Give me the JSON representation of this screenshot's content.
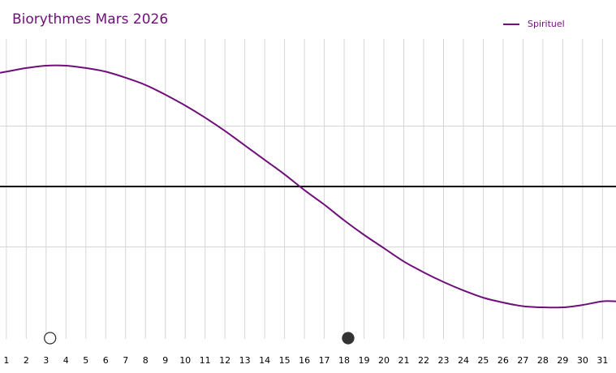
{
  "chart_data": {
    "type": "line",
    "title": "Biorythmes Mars 2026",
    "xlabel": "",
    "ylabel": "",
    "x": [
      1,
      2,
      3,
      4,
      5,
      6,
      7,
      8,
      9,
      10,
      11,
      12,
      13,
      14,
      15,
      16,
      17,
      18,
      19,
      20,
      21,
      22,
      23,
      24,
      25,
      26,
      27,
      28,
      29,
      30,
      31
    ],
    "xlim": [
      0.68,
      31.68
    ],
    "ylim": [
      -1.02,
      1.02
    ],
    "grid": true,
    "legend_position": "top-right",
    "series": [
      {
        "name": "Spirituel",
        "color": "#6e0f7a",
        "values": [
          0.95,
          0.98,
          1.0,
          1.0,
          0.98,
          0.95,
          0.9,
          0.84,
          0.76,
          0.67,
          0.57,
          0.46,
          0.34,
          0.22,
          0.1,
          -0.03,
          -0.15,
          -0.28,
          -0.4,
          -0.51,
          -0.62,
          -0.71,
          -0.79,
          -0.86,
          -0.92,
          -0.96,
          -0.99,
          -1.0,
          -1.0,
          -0.98,
          -0.95
        ]
      }
    ],
    "markers": [
      {
        "x": 3.2,
        "style": "empty-circle"
      },
      {
        "x": 18.2,
        "style": "filled-circle"
      }
    ]
  },
  "colors": {
    "title": "#6e0f7a",
    "zero_line": "#000000",
    "grid": "#d6d6d6",
    "tick_label": "#000000",
    "marker_fill": "#333333"
  }
}
